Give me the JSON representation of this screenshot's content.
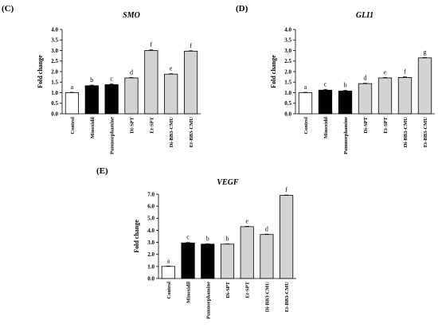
{
  "chart_data": [
    {
      "panel": "(C)",
      "type": "bar",
      "title": "SMO",
      "ylabel": "Fold change",
      "xlabel": "",
      "ylim": [
        0,
        4.0
      ],
      "yticks": [
        "0.0",
        "0.5",
        "1.0",
        "1.5",
        "2.0",
        "2.5",
        "3.0",
        "3.5",
        "4.0"
      ],
      "categories": [
        "Control",
        "Minoxidil",
        "Pumnorphamine",
        "Di-SPT",
        "Et-SPT",
        "Di-BB3-CMU",
        "Et-BB3-CMU"
      ],
      "values": [
        1.0,
        1.33,
        1.38,
        1.7,
        3.0,
        1.88,
        2.97
      ],
      "errors": [
        0.02,
        0.03,
        0.03,
        0.02,
        0.03,
        0.02,
        0.02
      ],
      "letters": [
        "a",
        "b",
        "c",
        "d",
        "f",
        "e",
        "f"
      ],
      "fills": [
        "#ffffff",
        "#000000",
        "#000000",
        "#d3d3d3",
        "#d3d3d3",
        "#d3d3d3",
        "#d3d3d3"
      ]
    },
    {
      "panel": "(D)",
      "type": "bar",
      "title": "GLI1",
      "ylabel": "Fold change",
      "xlabel": "",
      "ylim": [
        0,
        4.0
      ],
      "yticks": [
        "0.0",
        "0.5",
        "1.0",
        "1.5",
        "2.0",
        "2.5",
        "3.0",
        "3.5",
        "4.0"
      ],
      "categories": [
        "Control",
        "Minoxidil",
        "Pumnorphamine",
        "Di-SPT",
        "Et-SPT",
        "Di-BB3-CMU",
        "Et-BB3-CMU"
      ],
      "values": [
        1.0,
        1.12,
        1.08,
        1.43,
        1.7,
        1.72,
        2.65
      ],
      "errors": [
        0.02,
        0.04,
        0.03,
        0.02,
        0.02,
        0.03,
        0.02
      ],
      "letters": [
        "a",
        "c",
        "b",
        "d",
        "e",
        "f",
        "g"
      ],
      "fills": [
        "#ffffff",
        "#000000",
        "#000000",
        "#d3d3d3",
        "#d3d3d3",
        "#d3d3d3",
        "#d3d3d3"
      ]
    },
    {
      "panel": "(E)",
      "type": "bar",
      "title": "VEGF",
      "ylabel": "Fold change",
      "xlabel": "",
      "ylim": [
        0,
        7.0
      ],
      "yticks": [
        "0.0",
        "1.0",
        "2.0",
        "3.0",
        "4.0",
        "5.0",
        "6.0",
        "7.0"
      ],
      "categories": [
        "Control",
        "Minoxidil",
        "Pumnorphamine",
        "Di-SPT",
        "Et-SPT",
        "Di-BB3-CMU",
        "Et-BB3-CMU"
      ],
      "values": [
        1.0,
        2.95,
        2.85,
        2.85,
        4.3,
        3.65,
        6.9
      ],
      "errors": [
        0.03,
        0.04,
        0.03,
        0.02,
        0.03,
        0.03,
        0.03
      ],
      "letters": [
        "a",
        "c",
        "b",
        "b",
        "e",
        "d",
        "f"
      ],
      "fills": [
        "#ffffff",
        "#000000",
        "#000000",
        "#d3d3d3",
        "#d3d3d3",
        "#d3d3d3",
        "#d3d3d3"
      ]
    }
  ]
}
